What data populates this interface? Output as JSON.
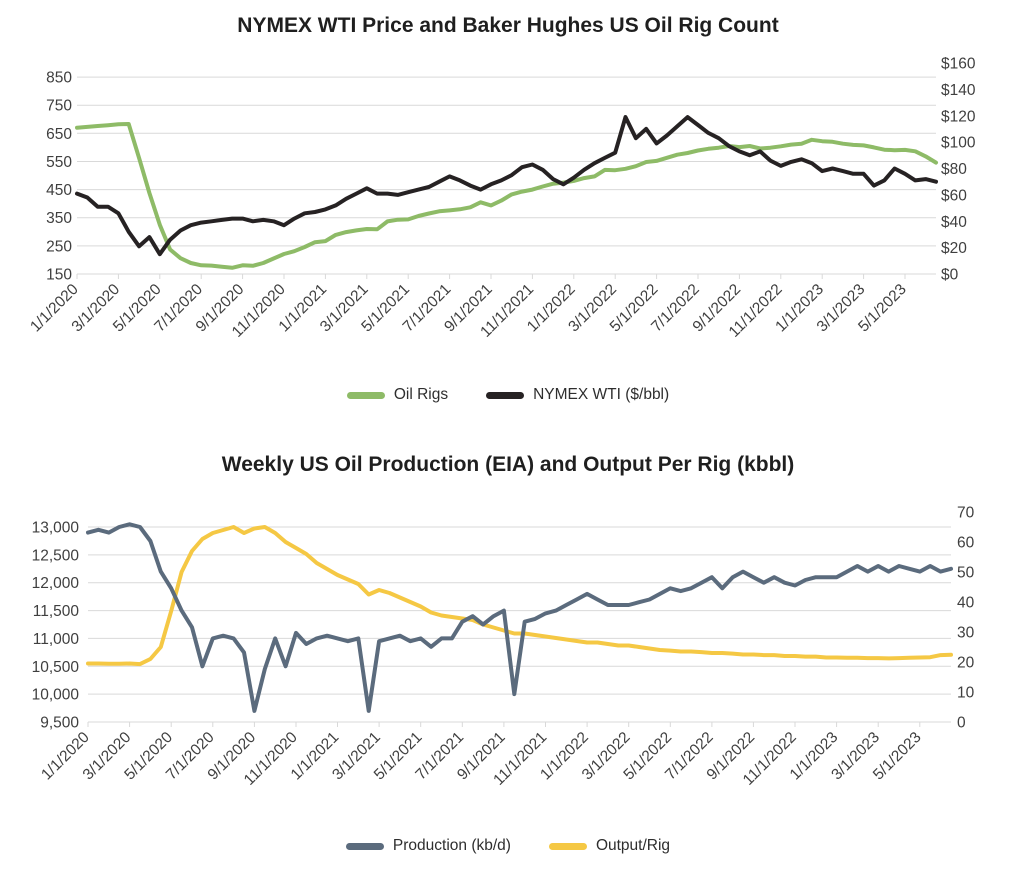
{
  "colors": {
    "green": "#8EBB67",
    "black": "#262223",
    "slate": "#5B6B7D",
    "yellow": "#F5C844",
    "grid": "#D9D9D9",
    "tick_text": "#3F3F3F",
    "title_text": "#1F1F1F"
  },
  "chart_data": [
    {
      "type": "line",
      "title": "NYMEX WTI Price and Baker Hughes US Oil Rig Count",
      "grid": "horizontal",
      "legend_position": "bottom",
      "t_unit": "months since 1/1/2020",
      "t_step": 0.5,
      "t_end": 41.5,
      "x_tick_labels": [
        "1/1/2020",
        "3/1/2020",
        "5/1/2020",
        "7/1/2020",
        "9/1/2020",
        "11/1/2020",
        "1/1/2021",
        "3/1/2021",
        "5/1/2021",
        "7/1/2021",
        "9/1/2021",
        "11/1/2021",
        "1/1/2022",
        "3/1/2022",
        "5/1/2022",
        "7/1/2022",
        "9/1/2022",
        "11/1/2022",
        "1/1/2023",
        "3/1/2023",
        "5/1/2023"
      ],
      "left_axis": {
        "min": 150,
        "max": 900,
        "labels": [
          "850",
          "750",
          "650",
          "550",
          "450",
          "350",
          "250",
          "150"
        ],
        "values": [
          850,
          750,
          650,
          550,
          450,
          350,
          250,
          150
        ]
      },
      "right_axis": {
        "min": 0,
        "max": 160,
        "labels": [
          "$160",
          "$140",
          "$120",
          "$100",
          "$80",
          "$60",
          "$40",
          "$20",
          "$0"
        ],
        "values": [
          160,
          140,
          120,
          100,
          80,
          60,
          40,
          20,
          0
        ]
      },
      "series": [
        {
          "name": "Oil Rigs",
          "slug": "oil-rigs",
          "axis": "left",
          "color": "#8EBB67",
          "z": 0,
          "values": [
            670,
            673,
            676,
            679,
            682,
            683,
            562,
            438,
            325,
            237,
            206,
            189,
            181,
            180,
            176,
            172,
            181,
            179,
            189,
            205,
            221,
            231,
            246,
            263,
            267,
            289,
            299,
            305,
            310,
            309,
            337,
            343,
            344,
            356,
            365,
            373,
            376,
            380,
            387,
            405,
            394,
            411,
            433,
            443,
            450,
            461,
            471,
            475,
            481,
            491,
            497,
            520,
            519,
            524,
            533,
            548,
            552,
            563,
            574,
            580,
            589,
            595,
            599,
            605,
            601,
            605,
            596,
            599,
            604,
            610,
            613,
            627,
            622,
            620,
            613,
            609,
            607,
            600,
            592,
            590,
            591,
            586,
            568,
            546
          ]
        },
        {
          "name": "NYMEX WTI ($/bbl)",
          "slug": "nymex-wti",
          "axis": "right",
          "color": "#262223",
          "z": 1,
          "values": [
            61,
            58,
            51,
            51,
            46,
            32,
            21,
            28,
            15,
            26,
            33,
            37,
            39,
            40,
            41,
            42,
            42,
            40,
            41,
            40,
            37,
            42,
            46,
            47,
            49,
            52,
            57,
            61,
            65,
            61,
            61,
            60,
            62,
            64,
            66,
            70,
            74,
            71,
            67,
            64,
            68,
            71,
            75,
            81,
            83,
            79,
            72,
            68,
            73,
            79,
            84,
            88,
            92,
            119,
            103,
            110,
            99,
            105,
            112,
            119,
            113,
            107,
            103,
            97,
            93,
            90,
            93,
            86,
            82,
            85,
            87,
            84,
            78,
            80,
            78,
            76,
            76,
            67,
            71,
            80,
            76,
            71,
            72,
            70
          ]
        }
      ],
      "legend": [
        {
          "label": "Oil Rigs",
          "slug": "oil-rigs",
          "color": "#8EBB67"
        },
        {
          "label": "NYMEX WTI ($/bbl)",
          "slug": "nymex-wti",
          "color": "#262223"
        }
      ]
    },
    {
      "type": "line",
      "title": "Weekly US Oil Production (EIA) and Output Per Rig (kbbl)",
      "grid": "horizontal",
      "legend_position": "bottom",
      "t_unit": "months since 1/1/2020",
      "t_step": 0.5,
      "t_end": 41.5,
      "x_tick_labels": [
        "1/1/2020",
        "3/1/2020",
        "5/1/2020",
        "7/1/2020",
        "9/1/2020",
        "11/1/2020",
        "1/1/2021",
        "3/1/2021",
        "5/1/2021",
        "7/1/2021",
        "9/1/2021",
        "11/1/2021",
        "1/1/2022",
        "3/1/2022",
        "5/1/2022",
        "7/1/2022",
        "9/1/2022",
        "11/1/2022",
        "1/1/2023",
        "3/1/2023",
        "5/1/2023"
      ],
      "left_axis": {
        "min": 9500,
        "max": 13270,
        "labels": [
          "13,000",
          "12,500",
          "12,000",
          "11,500",
          "11,000",
          "10,500",
          "10,000",
          "9,500"
        ],
        "values": [
          13000,
          12500,
          12000,
          11500,
          11000,
          10500,
          10000,
          9500
        ]
      },
      "right_axis": {
        "min": 0,
        "max": 70,
        "labels": [
          "70",
          "60",
          "50",
          "40",
          "30",
          "20",
          "10",
          "0"
        ],
        "values": [
          70,
          60,
          50,
          40,
          30,
          20,
          10,
          0
        ]
      },
      "series": [
        {
          "name": "Production (kb/d)",
          "slug": "production",
          "axis": "left",
          "color": "#5B6B7D",
          "z": 1,
          "values": [
            12900,
            12950,
            12900,
            13000,
            13050,
            13000,
            12750,
            12200,
            11900,
            11500,
            11200,
            10500,
            11000,
            11050,
            11000,
            10750,
            9700,
            10450,
            11000,
            10500,
            11100,
            10900,
            11000,
            11050,
            11000,
            10950,
            11000,
            9700,
            10950,
            11000,
            11050,
            10950,
            11000,
            10850,
            11000,
            11000,
            11300,
            11400,
            11250,
            11400,
            11500,
            10000,
            11300,
            11350,
            11450,
            11500,
            11600,
            11700,
            11800,
            11700,
            11600,
            11600,
            11600,
            11650,
            11700,
            11800,
            11900,
            11850,
            11900,
            12000,
            12100,
            11900,
            12100,
            12200,
            12100,
            12000,
            12100,
            12000,
            11950,
            12050,
            12100,
            12100,
            12100,
            12200,
            12300,
            12200,
            12300,
            12200,
            12300,
            12250,
            12200,
            12300,
            12200,
            12250
          ]
        },
        {
          "name": "Output/Rig",
          "slug": "output-rig",
          "axis": "right",
          "color": "#F5C844",
          "z": 0,
          "values": [
            19.5,
            19.5,
            19.4,
            19.4,
            19.5,
            19.3,
            21,
            25,
            37,
            50,
            57,
            61,
            63,
            64,
            65,
            63,
            64.5,
            65,
            63,
            60,
            58,
            56,
            53,
            51,
            49,
            47.5,
            46,
            42.5,
            44,
            43,
            41.5,
            40,
            38.5,
            36.5,
            35.5,
            35,
            34.5,
            34,
            32.5,
            31.5,
            30.5,
            29.5,
            29.5,
            29,
            28.5,
            28,
            27.5,
            27,
            26.5,
            26.5,
            26,
            25.5,
            25.5,
            25,
            24.5,
            24,
            23.8,
            23.5,
            23.5,
            23.3,
            23,
            23,
            22.8,
            22.5,
            22.5,
            22.3,
            22.3,
            22,
            22,
            21.8,
            21.8,
            21.5,
            21.5,
            21.4,
            21.4,
            21.3,
            21.3,
            21.2,
            21.3,
            21.4,
            21.5,
            21.6,
            22.3,
            22.4
          ]
        }
      ],
      "legend": [
        {
          "label": "Production (kb/d)",
          "slug": "production",
          "color": "#5B6B7D"
        },
        {
          "label": "Output/Rig",
          "slug": "output-rig",
          "color": "#F5C844"
        }
      ]
    }
  ]
}
